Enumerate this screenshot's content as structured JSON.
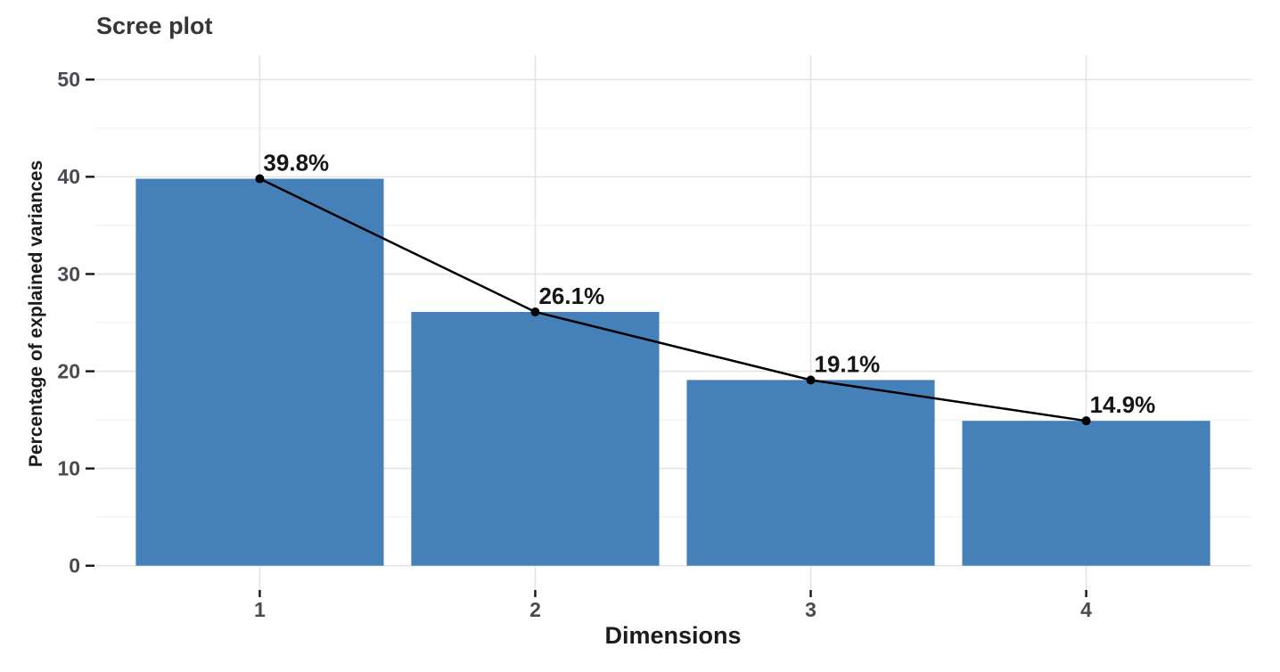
{
  "figure": {
    "title": "Scree plot",
    "x_axis_label": "Dimensions",
    "y_axis_label": "Percentage of explained variances"
  },
  "chart_data": {
    "type": "bar",
    "title": "Scree plot",
    "xlabel": "Dimensions",
    "ylabel": "Percentage of explained variances",
    "categories": [
      "1",
      "2",
      "3",
      "4"
    ],
    "series": [
      {
        "name": "percentage-of-explained-variance",
        "values": [
          39.8,
          26.1,
          19.1,
          14.9
        ]
      }
    ],
    "point_labels": [
      "39.8%",
      "26.1%",
      "19.1%",
      "14.9%"
    ],
    "overlay": [
      "line",
      "points",
      "value-labels"
    ],
    "ylim": [
      0,
      50
    ],
    "yticks_major": [
      0,
      10,
      20,
      30,
      40,
      50
    ],
    "yticks_minor": [
      5,
      15,
      25,
      35,
      45
    ],
    "grid": {
      "horizontal_major": true,
      "horizontal_minor": true,
      "vertical_major": true,
      "vertical_minor": false
    },
    "legend_position": "none",
    "colors": {
      "bar_fill": "#4581b8",
      "line": "#000000",
      "point": "#000000",
      "grid_major": "#e4e4e4",
      "grid_minor": "#f2f2f2",
      "tick_mark": "#141414",
      "axis_text": "#4a4a50",
      "value_label_text": "#161616",
      "background": "#ffffff"
    }
  }
}
